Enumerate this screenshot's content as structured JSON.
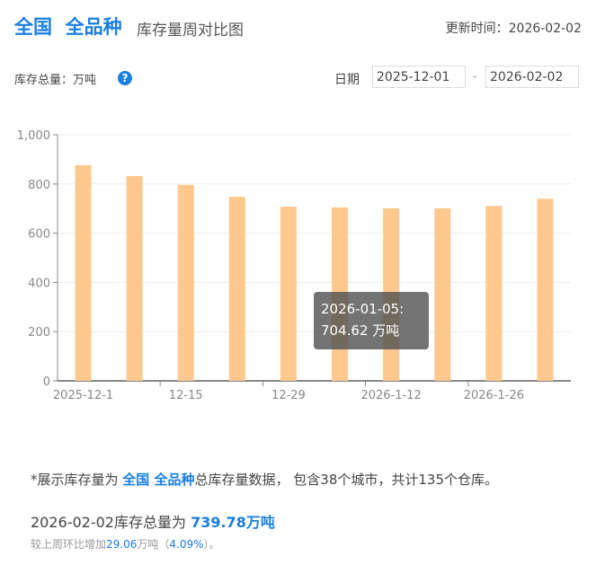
{
  "header": {
    "region": "全国",
    "category": "全品种",
    "title": "库存量周对比图",
    "update_label": "更新时间：",
    "update_date": "2026-02-02"
  },
  "filters": {
    "unit_label": "库存总量：万吨",
    "help_icon": "question-circle-icon",
    "date_label": "日期",
    "start_date": "2025-12-01",
    "separator": "-",
    "end_date": "2026-02-02"
  },
  "chart_data": {
    "type": "bar",
    "categories": [
      "2025-12-01",
      "2025-12-08",
      "2025-12-15",
      "2025-12-22",
      "2025-12-29",
      "2026-01-05",
      "2026-01-12",
      "2026-01-19",
      "2026-01-26",
      "2026-02-02"
    ],
    "values": [
      876,
      832,
      796,
      748,
      708,
      704.62,
      701,
      701,
      710.72,
      739.78
    ],
    "x_tick_labels": [
      "2025-12-1",
      "12-15",
      "12-29",
      "2026-1-12",
      "2026-1-26"
    ],
    "y_ticks": [
      "0",
      "200",
      "400",
      "600",
      "800",
      "1,000"
    ],
    "ylim": [
      0,
      1000
    ],
    "grid": true,
    "bar_color": "#ffc98d",
    "tooltip": {
      "line1": "2026-01-05:",
      "line2": "704.62 万吨"
    }
  },
  "footer": {
    "note_prefix": "*展示库存量为 ",
    "note_region": "全国 全品种",
    "note_suffix": "总库存量数据， 包含38个城市，共计135个仓库。",
    "total_prefix": "2026-02-02库存总量为 ",
    "total_value": "739.78万吨",
    "change_prefix": "较上周环比增加",
    "change_value": "29.06",
    "change_unit": "万吨（",
    "change_pct": "4.09%",
    "change_suffix": "）。"
  }
}
